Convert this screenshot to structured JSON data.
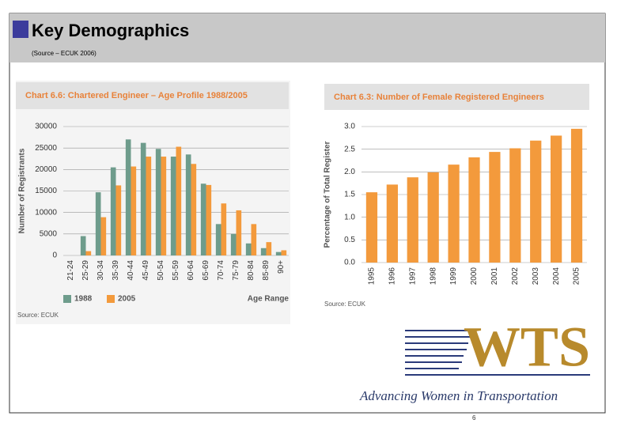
{
  "header": {
    "title": "Key Demographics",
    "subtitle": "(Source – ECUK 2006)"
  },
  "chart_data": [
    {
      "type": "bar",
      "title": "Chart 6.6: Chartered Engineer – Age Profile 1988/2005",
      "categories": [
        "21-24",
        "25-29",
        "30-34",
        "35-39",
        "40-44",
        "45-49",
        "50-54",
        "55-59",
        "60-64",
        "65-69",
        "70-74",
        "75-79",
        "80-84",
        "85-89",
        "90+"
      ],
      "series": [
        {
          "name": "1988",
          "color": "#6e9c8c",
          "values": [
            0,
            4500,
            14700,
            20500,
            27000,
            26200,
            24800,
            23000,
            23500,
            16700,
            7300,
            5000,
            2800,
            1700,
            800
          ]
        },
        {
          "name": "2005",
          "color": "#f39a3c",
          "values": [
            0,
            1000,
            8900,
            16300,
            20700,
            23000,
            23000,
            25300,
            21300,
            16400,
            12100,
            10500,
            7300,
            3100,
            1200
          ]
        }
      ],
      "ylabel": "Number of Registrants",
      "xlabel": "Age Range",
      "ylim": [
        0,
        30000
      ],
      "yticks": [
        0,
        5000,
        10000,
        15000,
        20000,
        25000,
        30000
      ],
      "grid": true,
      "source": "Source: ECUK"
    },
    {
      "type": "bar",
      "title": "Chart 6.3: Number of Female Registered Engineers",
      "categories": [
        "1995",
        "1996",
        "1997",
        "1998",
        "1999",
        "2000",
        "2001",
        "2002",
        "2003",
        "2004",
        "2005"
      ],
      "values": [
        1.55,
        1.72,
        1.88,
        1.99,
        2.16,
        2.32,
        2.44,
        2.52,
        2.69,
        2.8,
        2.95
      ],
      "color": "#f39a3c",
      "ylabel": "Percentage of Total Register",
      "ylim": [
        0,
        3
      ],
      "yticks": [
        {
          "value": 0,
          "label": "0.0"
        },
        {
          "value": 0.5,
          "label": "0.5"
        },
        {
          "value": 1,
          "label": "1.0"
        },
        {
          "value": 1.5,
          "label": "1.5"
        },
        {
          "value": 2,
          "label": "2.0"
        },
        {
          "value": 2.5,
          "label": "2.5"
        },
        {
          "value": 3,
          "label": "3.0"
        }
      ],
      "grid": true,
      "source": "Source: ECUK"
    }
  ],
  "logo": {
    "mark": "WTS",
    "tagline": "Advancing Women in Transportation"
  },
  "page_number": "6"
}
